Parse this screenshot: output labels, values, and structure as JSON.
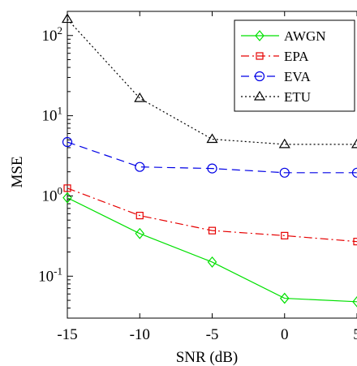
{
  "chart_data": {
    "type": "line",
    "title": "",
    "xlabel": "SNR (dB)",
    "ylabel": "MSE",
    "x": [
      -15,
      -10,
      -5,
      0,
      5
    ],
    "xlim": [
      -15,
      5
    ],
    "ylim": [
      0.03,
      200
    ],
    "yscale": "log",
    "grid": false,
    "legend_position": "top-right",
    "xticks": [
      -15,
      -10,
      -5,
      0,
      5
    ],
    "xtick_labels": [
      "-15",
      "-10",
      "-5",
      "0",
      "5"
    ],
    "yticks": [
      0.1,
      1,
      10,
      100
    ],
    "ytick_labels": [
      {
        "base": "10",
        "exp": "-1"
      },
      {
        "base": "10",
        "exp": "0"
      },
      {
        "base": "10",
        "exp": "1"
      },
      {
        "base": "10",
        "exp": "2"
      }
    ],
    "series": [
      {
        "name": "AWGN",
        "values": [
          0.95,
          0.34,
          0.15,
          0.053,
          0.048
        ],
        "color": "#00e000",
        "dash": "solid",
        "marker": "diamond"
      },
      {
        "name": "EPA",
        "values": [
          1.25,
          0.57,
          0.37,
          0.32,
          0.27
        ],
        "color": "#e60000",
        "dash": "dashdot",
        "marker": "square"
      },
      {
        "name": "EVA",
        "values": [
          4.7,
          2.3,
          2.2,
          1.95,
          1.95
        ],
        "color": "#0000e6",
        "dash": "dashed",
        "marker": "circle"
      },
      {
        "name": "ETU",
        "values": [
          160,
          16.5,
          5.1,
          4.4,
          4.4
        ],
        "color": "#000000",
        "dash": "dotted",
        "marker": "triangle"
      }
    ]
  }
}
